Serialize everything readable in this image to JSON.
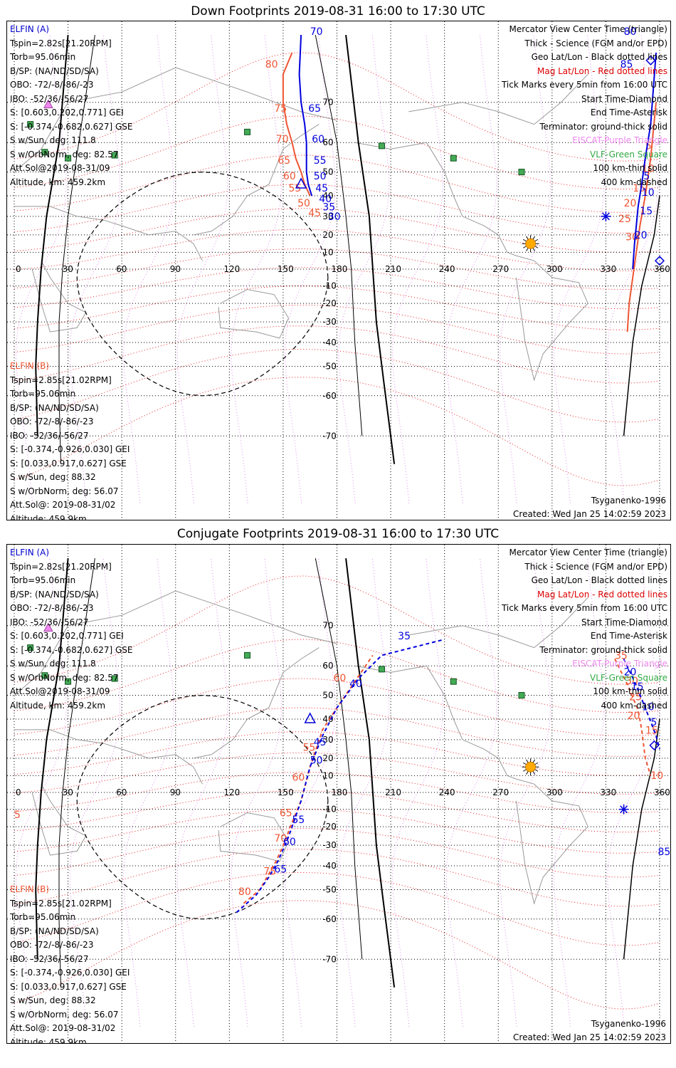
{
  "panels": [
    {
      "title": "Down Footprints 2019-08-31 16:00 to 17:30 UTC",
      "probe_a": {
        "name": "ELFIN (A)",
        "lines": [
          "Tspin=2.82s[21.20RPM]",
          "Torb=95.06min",
          "B/SP: (NA/ND/SD/SA)",
          "OBO: -72/-8/-86/-23",
          "IBO: -52/36/-56/27",
          "S: [0.603,0.202,0.771] GEI",
          "S: [-0.374,-0.682,0.627] GSE",
          "S w/Sun, deg: 111.8",
          "S w/OrbNorm, deg: 82.57",
          "Att.Sol@2019-08-31/09",
          "Altitude, km: 459.2km"
        ]
      },
      "probe_b": {
        "name": "ELFIN (B)",
        "lines": [
          "Tspin=2.85s[21.02RPM]",
          "Torb=95.06min",
          "B/SP: (NA/ND/SD/SA)",
          "OBO: -72/-8/-86/-23",
          "IBO: -52/36/-56/27",
          "S: [-0.374,-0.926,0.030] GEI",
          "S: [0.033,0.917,0.627] GSE",
          "S w/Sun, deg: 88.32",
          "S w/OrbNorm, deg: 56.07",
          "Att.Sol@: 2019-08-31/02",
          "Altitude: 459.9km"
        ]
      },
      "legend": [
        "Mercator View Center Time (triangle)",
        "Thick - Science (FGM and/or EPD)",
        "Geo Lat/Lon - Black dotted lines",
        "Mag Lat/Lon - Red dotted lines",
        "Tick Marks every 5min from 16:00 UTC",
        "Start Time-Diamond",
        "End Time-Asterisk",
        "Terminator: ground-thick solid",
        "EISCAT-Purple Triangle",
        "VLF-Green Square",
        "100 km-thin solid",
        "400 km-dashed"
      ],
      "model": "Tsyganenko-1996",
      "created": "Created: Wed Jan 25 14:02:59 2023",
      "tracks": {
        "a_red": {
          "points": [
            [
              155,
              78
            ],
            [
              150,
              75
            ],
            [
              150,
              70
            ],
            [
              152,
              65
            ],
            [
              155,
              60
            ],
            [
              157,
              55
            ],
            [
              160,
              50
            ],
            [
              162,
              45
            ],
            [
              165,
              40
            ]
          ],
          "labels": [
            [
              "80",
              [
                140,
                76
              ]
            ],
            [
              "75",
              [
                145,
                68
              ]
            ],
            [
              "70",
              [
                146,
                60
              ]
            ],
            [
              "65",
              [
                147,
                53
              ]
            ],
            [
              "60",
              [
                150,
                47
              ]
            ],
            [
              "55",
              [
                153,
                42
              ]
            ],
            [
              "50",
              [
                158,
                35
              ]
            ],
            [
              "45",
              [
                164,
                30
              ]
            ]
          ]
        },
        "a_blue": {
          "points": [
            [
              160,
              80
            ],
            [
              159,
              75
            ],
            [
              160,
              70
            ],
            [
              162,
              65
            ],
            [
              163,
              60
            ],
            [
              163,
              55
            ],
            [
              163,
              50
            ],
            [
              164,
              45
            ],
            [
              166,
              40
            ]
          ],
          "labels": [
            [
              "70",
              [
                165,
                80
              ]
            ],
            [
              "65",
              [
                164,
                68
              ]
            ],
            [
              "60",
              [
                166,
                60
              ]
            ],
            [
              "55",
              [
                167,
                53
              ]
            ],
            [
              "50",
              [
                167,
                47
              ]
            ],
            [
              "45",
              [
                168,
                42
              ]
            ],
            [
              "40",
              [
                170,
                37
              ]
            ],
            [
              "35",
              [
                172,
                33
              ]
            ],
            [
              "30",
              [
                175,
                28
              ]
            ]
          ]
        },
        "b_red": {
          "points": [
            [
              358,
              70
            ],
            [
              355,
              55
            ],
            [
              352,
              40
            ],
            [
              349,
              25
            ],
            [
              347,
              10
            ],
            [
              345,
              -5
            ],
            [
              343,
              -20
            ],
            [
              342,
              -35
            ]
          ],
          "labels": [
            [
              "5",
              [
                352,
                58
              ]
            ],
            [
              "10",
              [
                350,
                50
              ]
            ],
            [
              "15",
              [
                345,
                42
              ]
            ],
            [
              "20",
              [
                340,
                35
              ]
            ],
            [
              "25",
              [
                337,
                27
              ]
            ],
            [
              "30",
              [
                341,
                17
              ]
            ]
          ]
        },
        "b_blue": {
          "points": [
            [
              358,
              78
            ],
            [
              355,
              65
            ],
            [
              352,
              55
            ],
            [
              350,
              45
            ],
            [
              348,
              35
            ],
            [
              347,
              25
            ],
            [
              346,
              15
            ],
            [
              345,
              0
            ]
          ],
          "labels": [
            [
              "80",
              [
                340,
                80
              ]
            ],
            [
              "85",
              [
                338,
                76
              ]
            ],
            [
              "5",
              [
                351,
                47
              ]
            ],
            [
              "10",
              [
                350,
                40
              ]
            ],
            [
              "15",
              [
                349,
                31
              ]
            ],
            [
              "20",
              [
                346,
                18
              ]
            ]
          ]
        }
      },
      "eiscat": [
        [
          19,
          69.6
        ]
      ],
      "vlf": [
        [
          9,
          65
        ],
        [
          17,
          57
        ],
        [
          30,
          55
        ],
        [
          56,
          56
        ],
        [
          130,
          63
        ],
        [
          205,
          59
        ],
        [
          245,
          55
        ],
        [
          283,
          50
        ]
      ],
      "sun": [
        288,
        15
      ],
      "start_diamonds": [
        [
          355,
          77
        ],
        [
          360,
          5
        ]
      ],
      "end_asterisk": [
        [
          330,
          30
        ]
      ],
      "view_center": [
        160,
        45
      ]
    },
    {
      "title": "Conjugate Footprints 2019-08-31 16:00 to 17:30 UTC",
      "probe_a": {
        "name": "ELFIN (A)",
        "lines": [
          "Tspin=2.82s[21.20RPM]",
          "Torb=95.06min",
          "B/SP: (NA/ND/SD/SA)",
          "OBO: -72/-8/-86/-23",
          "IBO: -52/36/-56/27",
          "S: [0.603,0.202,0.771] GEI",
          "S: [-0.374,-0.682,0.627] GSE",
          "S w/Sun, deg: 111.8",
          "S w/OrbNorm, deg: 82.57",
          "Att.Sol@2019-08-31/09",
          "Altitude, km: 459.2km"
        ]
      },
      "probe_b": {
        "name": "ELFIN (B)",
        "lines": [
          "Tspin=2.85s[21.02RPM]",
          "Torb=95.06min",
          "B/SP: (NA/ND/SD/SA)",
          "OBO: -72/-8/-86/-23",
          "IBO: -52/36/-56/27",
          "S: [-0.374,-0.926,0.030] GEI",
          "S: [0.033,0.917,0.627] GSE",
          "S w/Sun, deg: 88.32",
          "S w/OrbNorm, deg: 56.07",
          "Att.Sol@: 2019-08-31/02",
          "Altitude: 459.9km"
        ]
      },
      "legend": [
        "Mercator View Center Time (triangle)",
        "Thick - Science (FGM and/or EPD)",
        "Geo Lat/Lon - Black dotted lines",
        "Mag Lat/Lon - Red dotted lines",
        "Tick Marks every 5min from 16:00 UTC",
        "Start Time-Diamond",
        "End Time-Asterisk",
        "Terminator: ground-thick solid",
        "EISCAT-Purple Triangle",
        "VLF-Green Square",
        "100 km-thin solid",
        "400 km-dashed"
      ],
      "model": "Tsyganenko-1996",
      "created": "Created: Wed Jan 25 14:02:59 2023",
      "tracks": {
        "a_red": {
          "points": [
            [
              128,
              -55
            ],
            [
              137,
              -50
            ],
            [
              141,
              -45
            ],
            [
              146,
              -38
            ],
            [
              151,
              -28
            ],
            [
              154,
              -20
            ],
            [
              160,
              -5
            ],
            [
              165,
              15
            ],
            [
              172,
              35
            ],
            [
              180,
              45
            ],
            [
              190,
              55
            ],
            [
              200,
              63
            ]
          ],
          "labels": [
            [
              "80",
              [
                125,
                -52
              ]
            ],
            [
              "75",
              [
                139,
                -44
              ]
            ],
            [
              "70",
              [
                145,
                -28
              ]
            ],
            [
              "65",
              [
                148,
                -14
              ]
            ],
            [
              "60",
              [
                155,
                7
              ]
            ],
            [
              "55",
              [
                161,
                24
              ]
            ],
            [
              "60",
              [
                178,
                55
              ]
            ]
          ]
        },
        "a_blue": {
          "points": [
            [
              124,
              -58
            ],
            [
              135,
              -52
            ],
            [
              142,
              -45
            ],
            [
              147,
              -38
            ],
            [
              152,
              -28
            ],
            [
              155,
              -20
            ],
            [
              160,
              -5
            ],
            [
              165,
              15
            ],
            [
              172,
              32
            ],
            [
              180,
              45
            ],
            [
              192,
              56
            ],
            [
              205,
              63
            ],
            [
              240,
              67
            ]
          ],
          "labels": [
            [
              "65",
              [
                145,
                -43
              ]
            ],
            [
              "60",
              [
                150,
                -30
              ]
            ],
            [
              "55",
              [
                155,
                -18
              ]
            ],
            [
              "50",
              [
                165,
                17
              ]
            ],
            [
              "45",
              [
                167,
                27
              ]
            ],
            [
              "40",
              [
                187,
                53
              ]
            ],
            [
              "35",
              [
                214,
                67
              ]
            ]
          ]
        },
        "b_red": {
          "points": [
            [
              335,
              62
            ],
            [
              342,
              54
            ],
            [
              348,
              44
            ],
            [
              350,
              35
            ],
            [
              352,
              20
            ],
            [
              355,
              10
            ]
          ],
          "labels": [
            [
              "35",
              [
                335,
                62
              ]
            ],
            [
              "30",
              [
                341,
                54
              ]
            ],
            [
              "25",
              [
                343,
                48
              ]
            ],
            [
              "20",
              [
                342,
                40
              ]
            ],
            [
              "15",
              [
                352,
                33
              ]
            ],
            [
              "10",
              [
                355,
                8
              ]
            ],
            [
              "5",
              [
                0,
                -15
              ]
            ]
          ]
        },
        "b_blue": {
          "points": [
            [
              340,
              62
            ],
            [
              346,
              55
            ],
            [
              352,
              45
            ],
            [
              358,
              32
            ],
            [
              360,
              25
            ]
          ],
          "labels": [
            [
              "20",
              [
                340,
                57
              ]
            ],
            [
              "15",
              [
                344,
                52
              ]
            ],
            [
              "10",
              [
                350,
                44
              ]
            ],
            [
              "5",
              [
                355,
                37
              ]
            ],
            [
              "85",
              [
                359,
                -35
              ]
            ]
          ]
        }
      },
      "eiscat": [
        [
          19,
          69.6
        ]
      ],
      "vlf": [
        [
          9,
          65
        ],
        [
          17,
          57
        ],
        [
          30,
          55
        ],
        [
          56,
          56
        ],
        [
          130,
          63
        ],
        [
          205,
          59
        ],
        [
          245,
          55
        ],
        [
          283,
          50
        ]
      ],
      "sun": [
        288,
        15
      ],
      "start_diamonds": [
        [
          357,
          27
        ]
      ],
      "end_asterisk": [
        [
          340,
          -10
        ]
      ],
      "view_center": [
        165,
        40
      ]
    }
  ],
  "axis": {
    "lon_ticks": [
      "0",
      "30",
      "60",
      "90",
      "120",
      "150",
      "180",
      "210",
      "240",
      "270",
      "300",
      "330",
      "360"
    ],
    "lat_ticks": [
      "70",
      "60",
      "50",
      "40",
      "30",
      "20",
      "10",
      "-10",
      "-20",
      "-30",
      "-40",
      "-50",
      "-60",
      "-70"
    ],
    "mag_lon_ticks": [
      "70",
      "60",
      "50",
      "40",
      "30",
      "20",
      "10"
    ]
  }
}
